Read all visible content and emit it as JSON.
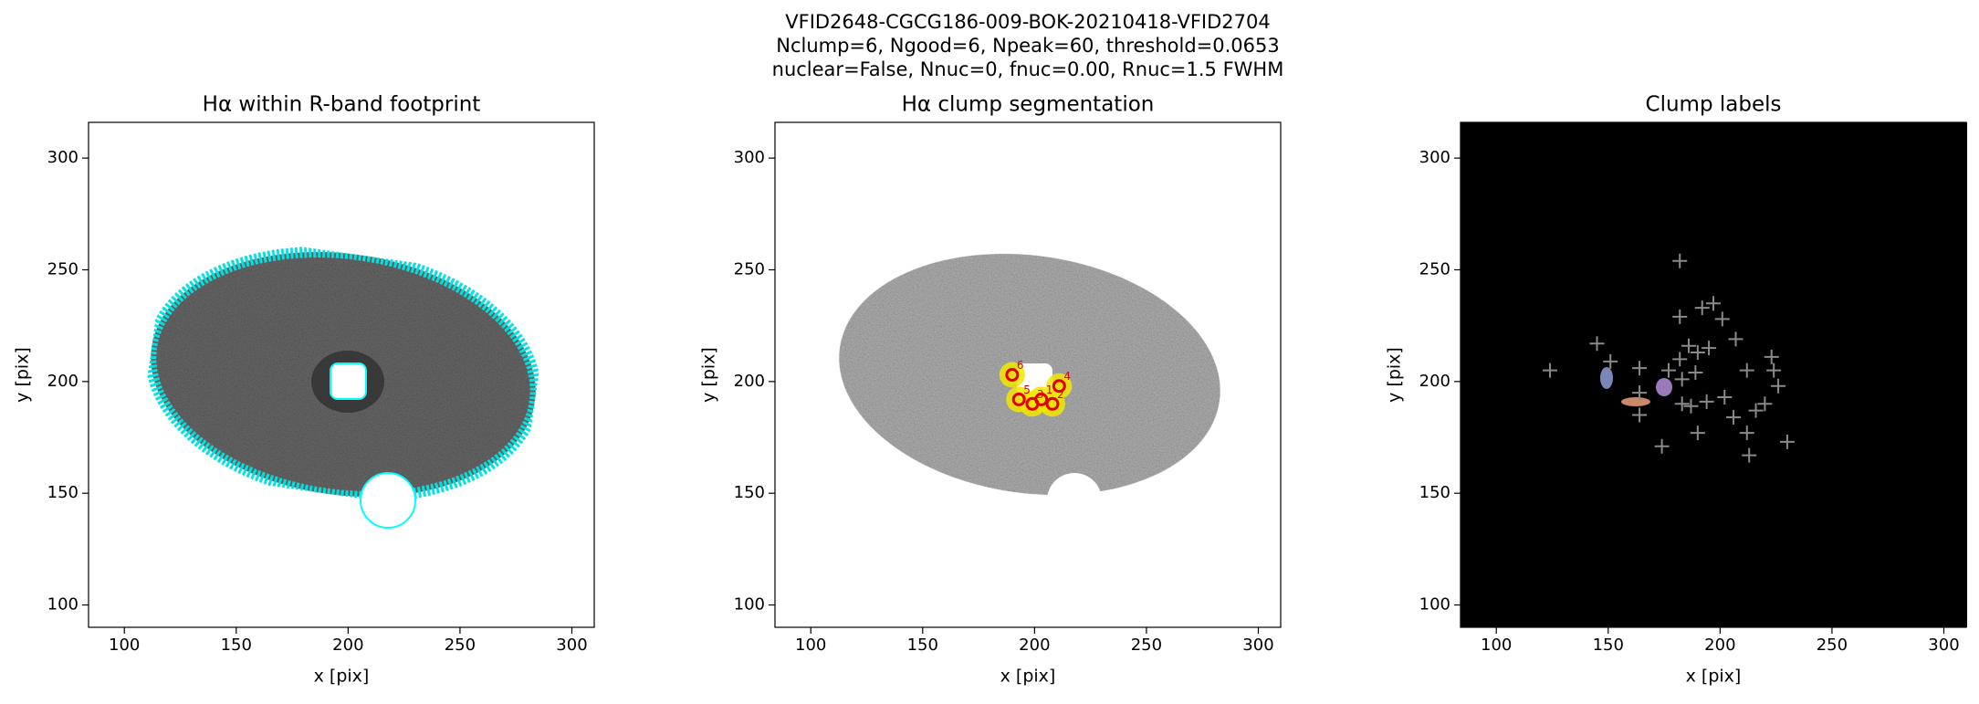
{
  "suptitle": [
    "VFID2648-CGCG186-009-BOK-20210418-VFID2704",
    "Nclump=6, Ngood=6, Npeak=60, threshold=0.0653",
    "nuclear=False, Nnuc=0, fnuc=0.00, Rnuc=1.5 FWHM"
  ],
  "chart_data": [
    {
      "type": "image",
      "title": "Hα within R-band footprint",
      "xlabel": "x [pix]",
      "ylabel": "y [pix]",
      "xlim": [
        84,
        310
      ],
      "ylim": [
        90,
        316
      ],
      "xticks": [
        100,
        150,
        200,
        250,
        300
      ],
      "yticks": [
        100,
        150,
        200,
        250,
        300
      ]
    },
    {
      "type": "image",
      "title": "Hα clump segmentation",
      "xlabel": "x [pix]",
      "ylabel": "y [pix]",
      "xlim": [
        84,
        310
      ],
      "ylim": [
        90,
        316
      ],
      "xticks": [
        100,
        150,
        200,
        250,
        300
      ],
      "yticks": [
        100,
        150,
        200,
        250,
        300
      ],
      "clumps": {
        "x": [
          190,
          193,
          199,
          203,
          208,
          211
        ],
        "y": [
          203,
          192,
          190,
          192,
          190,
          198
        ],
        "labels": [
          6,
          5,
          3,
          1,
          2,
          4
        ]
      }
    },
    {
      "type": "image",
      "title": "Clump labels",
      "xlabel": "x [pix]",
      "ylabel": "y [pix]",
      "xlim": [
        84,
        310
      ],
      "ylim": [
        90,
        316
      ],
      "xticks": [
        100,
        150,
        200,
        250,
        300
      ],
      "yticks": [
        100,
        150,
        200,
        250,
        300
      ],
      "peaks": {
        "x": [
          182,
          182,
          192,
          197,
          201,
          207,
          145,
          151,
          164,
          186,
          190,
          195,
          182,
          177,
          183,
          189,
          164,
          183,
          187,
          194,
          202,
          212,
          223,
          224,
          226,
          220,
          216,
          206,
          164,
          174,
          190,
          212,
          213,
          230,
          124
        ],
        "y": [
          254,
          229,
          233,
          235,
          228,
          219,
          217,
          209,
          206,
          216,
          213,
          215,
          210,
          205,
          201,
          204,
          195,
          190,
          189,
          191,
          193,
          205,
          211,
          205,
          198,
          190,
          187,
          184,
          185,
          171,
          177,
          177,
          167,
          173,
          205
        ]
      }
    }
  ]
}
